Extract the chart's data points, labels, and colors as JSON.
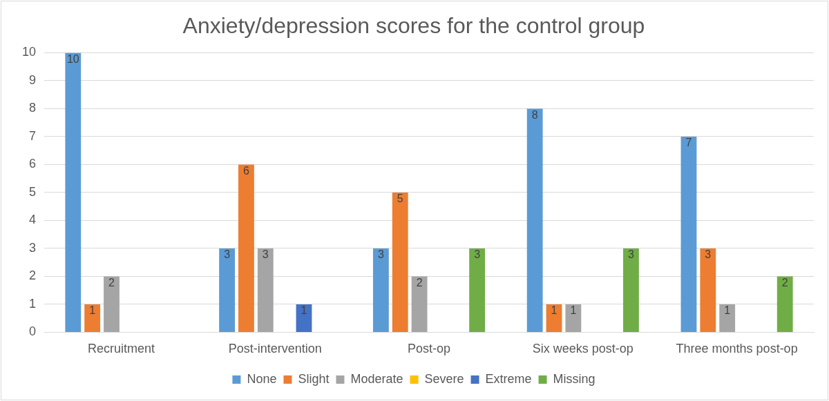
{
  "chart_data": {
    "type": "bar",
    "title": "Anxiety/depression scores for the control group",
    "categories": [
      "Recruitment",
      "Post-intervention",
      "Post-op",
      "Six weeks post-op",
      "Three months post-op"
    ],
    "series": [
      {
        "name": "None",
        "color": "#5b9bd5",
        "values": [
          10,
          3,
          3,
          8,
          7
        ],
        "value_labels": [
          "10",
          "3",
          "3",
          "8",
          "7"
        ]
      },
      {
        "name": "Slight",
        "color": "#ed7d31",
        "values": [
          1,
          6,
          5,
          1,
          3
        ],
        "value_labels": [
          "1",
          "6",
          "5",
          "1",
          "3"
        ]
      },
      {
        "name": "Moderate",
        "color": "#a5a5a5",
        "values": [
          2,
          3,
          2,
          1,
          1
        ],
        "value_labels": [
          "2",
          "3",
          "2",
          "1",
          "1"
        ]
      },
      {
        "name": "Severe",
        "color": "#ffc000",
        "values": [
          0,
          0,
          0,
          0,
          0
        ],
        "value_labels": [
          null,
          null,
          null,
          null,
          null
        ]
      },
      {
        "name": "Extreme",
        "color": "#4472c4",
        "values": [
          0,
          1,
          0,
          0,
          0
        ],
        "value_labels": [
          null,
          "1",
          null,
          null,
          null
        ]
      },
      {
        "name": "Missing",
        "color": "#70ad47",
        "values": [
          0,
          0,
          3,
          3,
          2
        ],
        "value_labels": [
          null,
          null,
          "3",
          "3",
          "2"
        ]
      }
    ],
    "ylim": [
      0,
      10
    ],
    "yticks": [
      0,
      1,
      2,
      3,
      4,
      5,
      6,
      7,
      8,
      9,
      10
    ],
    "grid": "y",
    "legend": "bottom"
  }
}
